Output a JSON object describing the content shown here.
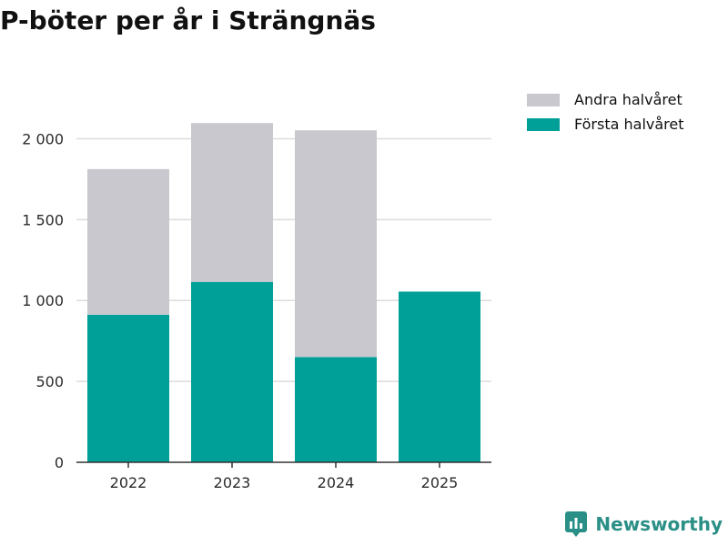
{
  "chart_data": {
    "type": "bar",
    "stacked": true,
    "title": "P-böter per år i Strängnäs",
    "categories": [
      "2022",
      "2023",
      "2024",
      "2025"
    ],
    "series": [
      {
        "name": "Första halvåret",
        "color": "#00a098",
        "values": [
          912,
          1115,
          650,
          1055
        ]
      },
      {
        "name": "Andra halvåret",
        "color": "#c8c8ce",
        "values": [
          900,
          982,
          1402,
          0
        ]
      }
    ],
    "legend_order": [
      "Andra halvåret",
      "Första halvåret"
    ],
    "legend_position": "top-right",
    "y_ticks": [
      0,
      500,
      1000,
      1500,
      2000
    ],
    "y_tick_labels": [
      "0",
      "500",
      "1 000",
      "1 500",
      "2 000"
    ],
    "ylim": [
      0,
      2250
    ],
    "xlabel": "",
    "ylabel": "",
    "grid": "horizontal"
  },
  "brand": {
    "name": "Newsworthy",
    "icon": "newsworthy-logo-icon",
    "color": "#2a8f86"
  }
}
